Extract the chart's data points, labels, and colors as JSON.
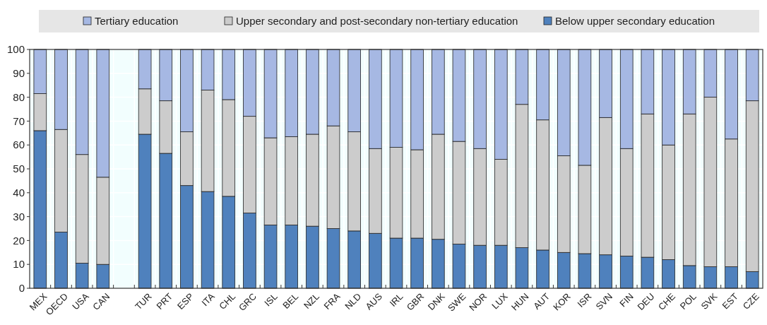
{
  "chart_data": {
    "type": "bar",
    "stacked": true,
    "categories": [
      "MEX",
      "OECD",
      "USA",
      "CAN",
      null,
      "TUR",
      "PRT",
      "ESP",
      "ITA",
      "CHL",
      "GRC",
      "ISL",
      "BEL",
      "NZL",
      "FRA",
      "NLD",
      "AUS",
      "IRL",
      "GBR",
      "DNK",
      "SWE",
      "NOR",
      "LUX",
      "HUN",
      "AUT",
      "KOR",
      "ISR",
      "SVN",
      "FIN",
      "DEU",
      "CHE",
      "POL",
      "SVK",
      "EST",
      "CZE"
    ],
    "series": [
      {
        "name": "Below upper secondary education",
        "color": "#4f81bd",
        "values": [
          66,
          23.5,
          10.5,
          10,
          null,
          64.5,
          56.5,
          43,
          40.5,
          38.5,
          31.5,
          26.5,
          26.5,
          26,
          25,
          24,
          23,
          21,
          21,
          20.5,
          18.5,
          18,
          18,
          17,
          16,
          15,
          14.5,
          14,
          13.5,
          13,
          12,
          9.5,
          9,
          9,
          7
        ]
      },
      {
        "name": "Upper secondary and post-secondary non-tertiary education",
        "color": "#cccccc",
        "values": [
          15.5,
          43,
          45.5,
          36.5,
          null,
          19,
          22,
          22.5,
          42.5,
          40.5,
          40.5,
          36.5,
          37,
          38.5,
          43,
          41.5,
          35.5,
          38,
          37,
          44,
          43,
          40.5,
          36,
          60,
          54.5,
          40.5,
          37,
          57.5,
          45,
          60,
          48,
          63.5,
          71,
          53.5,
          71.5
        ]
      },
      {
        "name": "Tertiary education",
        "color": "#a6b8e3",
        "values": [
          18.5,
          33.5,
          44,
          53.5,
          null,
          16.5,
          21.5,
          34.5,
          17,
          21,
          28,
          37,
          36.5,
          35.5,
          32,
          34.5,
          41.5,
          41,
          42,
          35.5,
          38.5,
          41.5,
          46,
          23,
          29.5,
          44.5,
          48.5,
          28.5,
          41.5,
          27,
          40,
          27,
          20,
          37.5,
          21.5
        ]
      }
    ],
    "ylim": [
      0,
      100
    ],
    "yticks": [
      0,
      10,
      20,
      30,
      40,
      50,
      60,
      70,
      80,
      90,
      100
    ],
    "grid": true,
    "legend": "top"
  }
}
